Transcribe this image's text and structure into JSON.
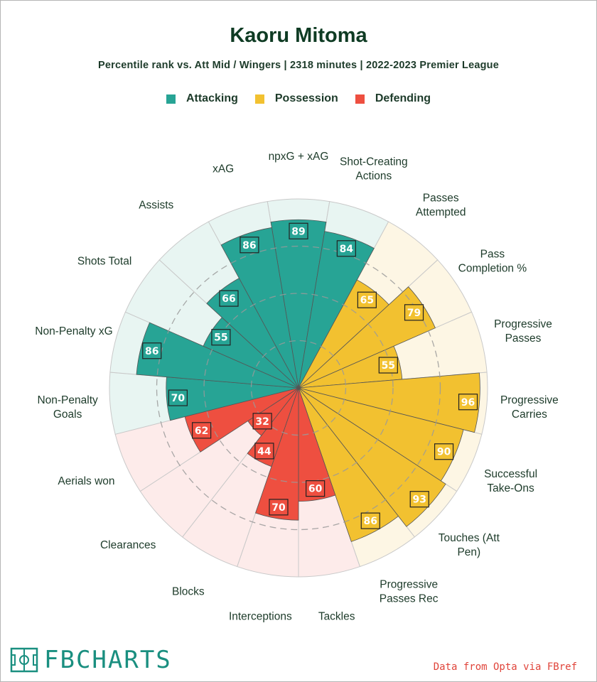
{
  "title": "Kaoru Mitoma",
  "subtitle": "Percentile rank vs. Att Mid / Wingers | 2318 minutes | 2022-2023 Premier League",
  "legend": [
    {
      "label": "Attacking",
      "color": "#27a495"
    },
    {
      "label": "Possession",
      "color": "#f2c130"
    },
    {
      "label": "Defending",
      "color": "#ee4f40"
    }
  ],
  "brand": {
    "text": "FBCHARTS",
    "icon": "soccer-pitch-icon"
  },
  "source": "Data from Opta via FBref",
  "chart_data": {
    "type": "radar",
    "scale": [
      0,
      100
    ],
    "grid": "dashed rings at 25 / 50 / 75",
    "categories": [
      {
        "name": "Attacking",
        "color": "#27a495",
        "bg": "#e8f5f2"
      },
      {
        "name": "Possession",
        "color": "#f2c130",
        "bg": "#fdf6e4"
      },
      {
        "name": "Defending",
        "color": "#ee4f40",
        "bg": "#fdebea"
      }
    ],
    "metrics": [
      {
        "label": [
          "npxG + xAG"
        ],
        "value": 89,
        "category": "Attacking"
      },
      {
        "label": [
          "Shot-Creating",
          "Actions"
        ],
        "value": 84,
        "category": "Attacking"
      },
      {
        "label": [
          "Passes",
          "Attempted"
        ],
        "value": 65,
        "category": "Possession"
      },
      {
        "label": [
          "Pass",
          "Completion %"
        ],
        "value": 79,
        "category": "Possession"
      },
      {
        "label": [
          "Progressive",
          "Passes"
        ],
        "value": 55,
        "category": "Possession"
      },
      {
        "label": [
          "Progressive",
          "Carries"
        ],
        "value": 96,
        "category": "Possession"
      },
      {
        "label": [
          "Successful",
          "Take-Ons"
        ],
        "value": 90,
        "category": "Possession"
      },
      {
        "label": [
          "Touches (Att",
          "Pen)"
        ],
        "value": 93,
        "category": "Possession"
      },
      {
        "label": [
          "Progressive",
          "Passes Rec"
        ],
        "value": 86,
        "category": "Possession"
      },
      {
        "label": [
          "Tackles"
        ],
        "value": 60,
        "category": "Defending"
      },
      {
        "label": [
          "Interceptions"
        ],
        "value": 70,
        "category": "Defending"
      },
      {
        "label": [
          "Blocks"
        ],
        "value": 44,
        "category": "Defending"
      },
      {
        "label": [
          "Clearances"
        ],
        "value": 32,
        "category": "Defending"
      },
      {
        "label": [
          "Aerials won"
        ],
        "value": 62,
        "category": "Defending"
      },
      {
        "label": [
          "Non-Penalty",
          "Goals"
        ],
        "value": 70,
        "category": "Attacking"
      },
      {
        "label": [
          "Non-Penalty xG"
        ],
        "value": 86,
        "category": "Attacking"
      },
      {
        "label": [
          "Shots Total"
        ],
        "value": 55,
        "category": "Attacking"
      },
      {
        "label": [
          "Assists"
        ],
        "value": 66,
        "category": "Attacking"
      },
      {
        "label": [
          "xAG"
        ],
        "value": 86,
        "category": "Attacking"
      }
    ]
  }
}
